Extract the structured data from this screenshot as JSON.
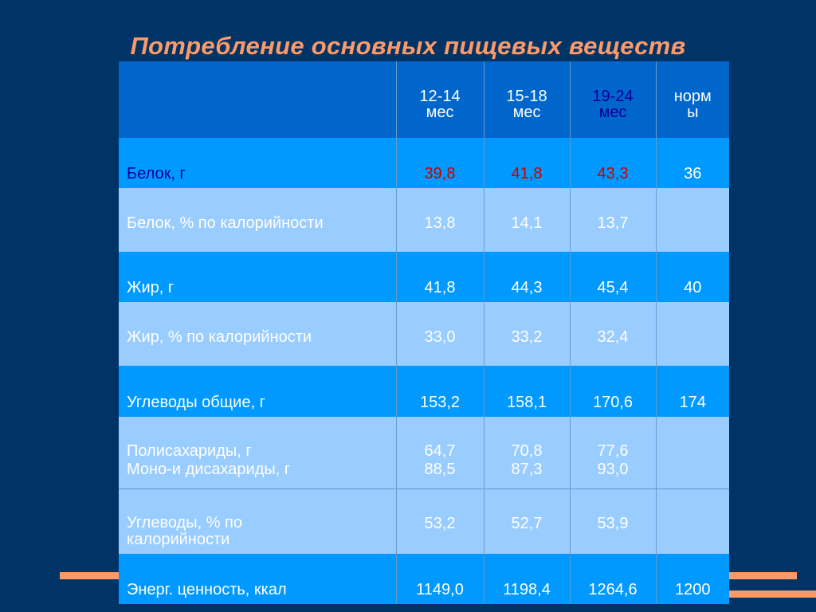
{
  "title": "Потребление основных пищевых веществ",
  "columns": [
    "",
    "12-14 мес",
    "15-18 мес",
    "19-24 мес",
    "нормы"
  ],
  "header": {
    "c1a": "12-14",
    "c1b": "мес",
    "c2a": "15-18",
    "c2b": "мес",
    "c3a": "19-24",
    "c3b": "мес",
    "c4a": "норм",
    "c4b": "ы"
  },
  "rows": [
    {
      "label": "Белок, г",
      "v1": "39,8",
      "v2": "41,8",
      "v3": "43,3",
      "norm": "36"
    },
    {
      "label": "Белок, % по калорийности",
      "v1": "13,8",
      "v2": "14,1",
      "v3": "13,7",
      "norm": ""
    },
    {
      "label": "Жир, г",
      "v1": "41,8",
      "v2": "44,3",
      "v3": "45,4",
      "norm": "40"
    },
    {
      "label": "Жир, % по калорийности",
      "v1": "33,0",
      "v2": "33,2",
      "v3": "32,4",
      "norm": ""
    },
    {
      "label": "Углеводы общие, г",
      "v1": "153,2",
      "v2": "158,1",
      "v3": "170,6",
      "norm": "174"
    },
    {
      "label_a": "Полисахариды, г",
      "label_b": "Моно-и дисахариды, г",
      "v1a": "64,7",
      "v1b": "88,5",
      "v2a": "70,8",
      "v2b": "87,3",
      "v3a": "77,6",
      "v3b": "93,0",
      "norm": ""
    },
    {
      "label_a": "Углеводы, % по",
      "label_b": "калорийности",
      "v1": "53,2",
      "v2": "52,7",
      "v3": "53,9",
      "norm": ""
    },
    {
      "label": "Энерг. ценность, ккал",
      "v1": "1149,0",
      "v2": "1198,4",
      "v3": "1264,6",
      "norm": "1200"
    }
  ],
  "colors": {
    "background": "#003366",
    "title": "#FF9966",
    "header_row": "#0066CC",
    "dark_row": "#0099FF",
    "light_row": "#99CCFF",
    "highlight_red": "#CC0000",
    "highlight_navy": "#000099"
  }
}
